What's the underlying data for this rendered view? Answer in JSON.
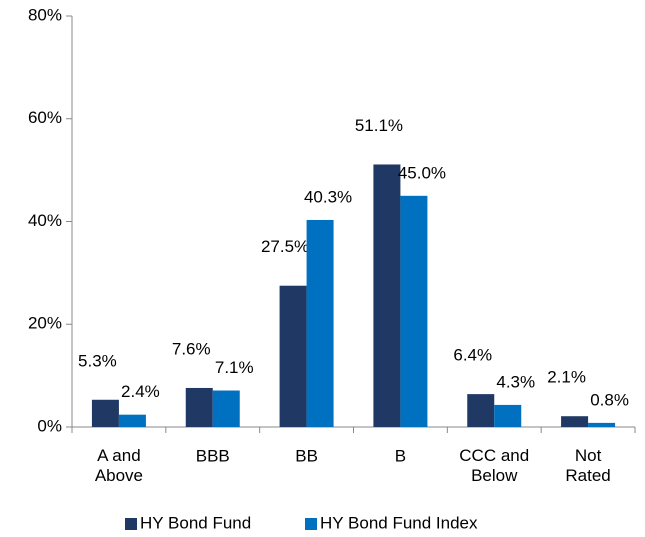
{
  "chart_data": {
    "type": "bar",
    "categories": [
      "A and\nAbove",
      "BBB",
      "BB",
      "B",
      "CCC and\nBelow",
      "Not\nRated"
    ],
    "series": [
      {
        "name": "HY Bond Fund",
        "color": "#1f3864",
        "values": [
          5.3,
          7.6,
          27.5,
          51.1,
          6.4,
          2.1
        ],
        "value_labels": [
          "5.3%",
          "7.6%",
          "27.5%",
          "51.1%",
          "6.4%",
          "2.1%"
        ]
      },
      {
        "name": "HY Bond Fund Index",
        "color": "#0070c0",
        "values": [
          2.4,
          7.1,
          40.3,
          45.0,
          4.3,
          0.8
        ],
        "value_labels": [
          "2.4%",
          "7.1%",
          "40.3%",
          "45.0%",
          "4.3%",
          "0.8%"
        ]
      }
    ],
    "ylim": [
      0,
      80
    ],
    "yticks": [
      {
        "value": 0,
        "label": "0%"
      },
      {
        "value": 20,
        "label": "20%"
      },
      {
        "value": 40,
        "label": "40%"
      },
      {
        "value": 60,
        "label": "60%"
      },
      {
        "value": 80,
        "label": "80%"
      }
    ],
    "legend": "bottom"
  }
}
